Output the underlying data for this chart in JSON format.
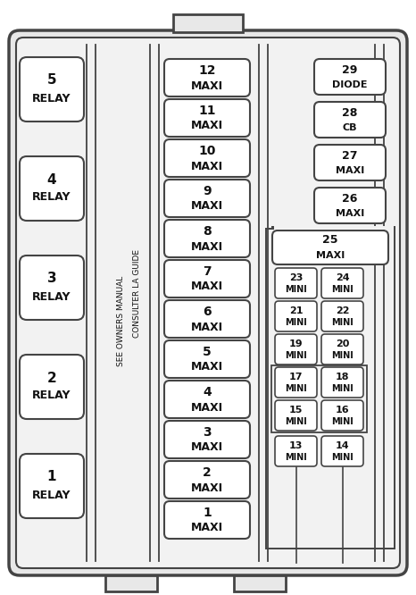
{
  "bg_color": "#ffffff",
  "border_color": "#444444",
  "box_fill": "#ffffff",
  "text_color": "#111111",
  "relays": [
    "5",
    "4",
    "3",
    "2",
    "1"
  ],
  "maxi_fuses": [
    "12",
    "11",
    "10",
    "9",
    "8",
    "7",
    "6",
    "5",
    "4",
    "3",
    "2",
    "1"
  ],
  "right_top": [
    {
      "num": "29",
      "label": "DIODE"
    },
    {
      "num": "28",
      "label": "CB"
    },
    {
      "num": "27",
      "label": "MAXI"
    },
    {
      "num": "26",
      "label": "MAXI"
    }
  ],
  "maxi25": {
    "num": "25",
    "label": "MAXI"
  },
  "mini_pairs": [
    [
      "23",
      "24"
    ],
    [
      "21",
      "22"
    ],
    [
      "19",
      "20"
    ],
    [
      "17",
      "18"
    ],
    [
      "15",
      "16"
    ]
  ],
  "bottom_mini": [
    "13",
    "14"
  ],
  "text_see": "SEE OWNERS MANUAL",
  "text_cons": "CONSULTER LA GUIDE"
}
